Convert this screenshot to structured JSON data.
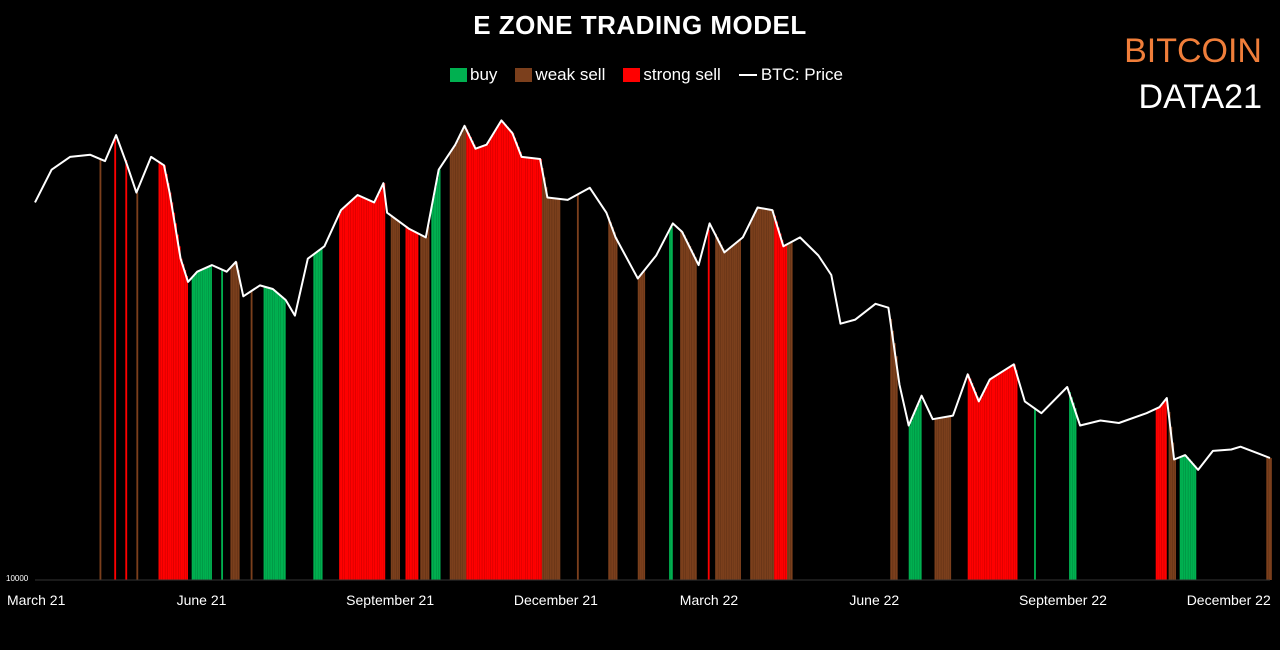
{
  "title": "E ZONE TRADING MODEL",
  "brand": {
    "line1": "BITCOIN",
    "line2": "DATA21",
    "line1_color": "#F07E3A",
    "line2_color": "#FFFFFF"
  },
  "legend": [
    {
      "label": "buy",
      "color": "#00B050",
      "kind": "box"
    },
    {
      "label": "weak sell",
      "color": "#7B3F1C",
      "kind": "box"
    },
    {
      "label": "strong sell",
      "color": "#FF0000",
      "kind": "box"
    },
    {
      "label": "BTC: Price",
      "color": "#FFFFFF",
      "kind": "line"
    }
  ],
  "chart_data": {
    "type": "bar",
    "x_axis": {
      "start": "2021-03-01",
      "end": "2022-12-31",
      "ticks": [
        {
          "label": "March 21",
          "date": "2021-03-01"
        },
        {
          "label": "June 21",
          "date": "2021-06-01"
        },
        {
          "label": "September 21",
          "date": "2021-09-01"
        },
        {
          "label": "December 21",
          "date": "2021-12-01"
        },
        {
          "label": "March 22",
          "date": "2022-03-01"
        },
        {
          "label": "June 22",
          "date": "2022-06-01"
        },
        {
          "label": "September 22",
          "date": "2022-09-01"
        },
        {
          "label": "December 22",
          "date": "2022-12-01"
        }
      ]
    },
    "y_axis": {
      "scale": "log",
      "min": 10000,
      "max": 75000,
      "tick_labels": [
        "10000"
      ]
    },
    "price_series": {
      "name": "BTC: Price",
      "color": "#FFFFFF",
      "points": [
        [
          "2021-03-01",
          48000
        ],
        [
          "2021-03-10",
          55000
        ],
        [
          "2021-03-20",
          58000
        ],
        [
          "2021-03-31",
          58500
        ],
        [
          "2021-04-08",
          57000
        ],
        [
          "2021-04-14",
          63500
        ],
        [
          "2021-04-20",
          56000
        ],
        [
          "2021-04-25",
          50000
        ],
        [
          "2021-05-03",
          58000
        ],
        [
          "2021-05-10",
          56000
        ],
        [
          "2021-05-13",
          50000
        ],
        [
          "2021-05-19",
          38000
        ],
        [
          "2021-05-23",
          34500
        ],
        [
          "2021-05-28",
          36000
        ],
        [
          "2021-06-05",
          37000
        ],
        [
          "2021-06-13",
          36000
        ],
        [
          "2021-06-18",
          37500
        ],
        [
          "2021-06-22",
          32500
        ],
        [
          "2021-07-01",
          34000
        ],
        [
          "2021-07-08",
          33500
        ],
        [
          "2021-07-15",
          32000
        ],
        [
          "2021-07-20",
          30000
        ],
        [
          "2021-07-27",
          38000
        ],
        [
          "2021-08-05",
          40000
        ],
        [
          "2021-08-14",
          46500
        ],
        [
          "2021-08-23",
          49500
        ],
        [
          "2021-09-01",
          48000
        ],
        [
          "2021-09-06",
          52000
        ],
        [
          "2021-09-08",
          46000
        ],
        [
          "2021-09-20",
          43000
        ],
        [
          "2021-09-29",
          41500
        ],
        [
          "2021-10-06",
          55000
        ],
        [
          "2021-10-15",
          61000
        ],
        [
          "2021-10-20",
          66000
        ],
        [
          "2021-10-26",
          60000
        ],
        [
          "2021-11-01",
          61000
        ],
        [
          "2021-11-09",
          67500
        ],
        [
          "2021-11-15",
          64000
        ],
        [
          "2021-11-20",
          58000
        ],
        [
          "2021-11-30",
          57500
        ],
        [
          "2021-12-04",
          49000
        ],
        [
          "2021-12-15",
          48500
        ],
        [
          "2021-12-27",
          51000
        ],
        [
          "2022-01-05",
          46000
        ],
        [
          "2022-01-10",
          41500
        ],
        [
          "2022-01-22",
          35000
        ],
        [
          "2022-02-01",
          38500
        ],
        [
          "2022-02-10",
          44000
        ],
        [
          "2022-02-15",
          42500
        ],
        [
          "2022-02-24",
          37000
        ],
        [
          "2022-03-02",
          44000
        ],
        [
          "2022-03-10",
          39000
        ],
        [
          "2022-03-20",
          41500
        ],
        [
          "2022-03-28",
          47000
        ],
        [
          "2022-04-05",
          46500
        ],
        [
          "2022-04-11",
          40000
        ],
        [
          "2022-04-20",
          41500
        ],
        [
          "2022-04-30",
          38500
        ],
        [
          "2022-05-07",
          35500
        ],
        [
          "2022-05-12",
          29000
        ],
        [
          "2022-05-20",
          29500
        ],
        [
          "2022-05-31",
          31500
        ],
        [
          "2022-06-07",
          31000
        ],
        [
          "2022-06-13",
          22500
        ],
        [
          "2022-06-18",
          19000
        ],
        [
          "2022-06-25",
          21500
        ],
        [
          "2022-07-01",
          19500
        ],
        [
          "2022-07-12",
          19800
        ],
        [
          "2022-07-20",
          23500
        ],
        [
          "2022-07-26",
          21000
        ],
        [
          "2022-08-01",
          23000
        ],
        [
          "2022-08-14",
          24500
        ],
        [
          "2022-08-20",
          21000
        ],
        [
          "2022-08-29",
          20000
        ],
        [
          "2022-09-12",
          22300
        ],
        [
          "2022-09-19",
          19000
        ],
        [
          "2022-09-30",
          19400
        ],
        [
          "2022-10-10",
          19200
        ],
        [
          "2022-10-25",
          20000
        ],
        [
          "2022-11-01",
          20500
        ],
        [
          "2022-11-05",
          21300
        ],
        [
          "2022-11-09",
          16500
        ],
        [
          "2022-11-15",
          16800
        ],
        [
          "2022-11-22",
          15800
        ],
        [
          "2022-11-30",
          17100
        ],
        [
          "2022-12-10",
          17200
        ],
        [
          "2022-12-15",
          17400
        ],
        [
          "2022-12-25",
          16900
        ],
        [
          "2022-12-31",
          16600
        ]
      ]
    },
    "signals": [
      {
        "type": "weak sell",
        "from": "2021-04-05",
        "to": "2021-04-05"
      },
      {
        "type": "strong sell",
        "from": "2021-04-13",
        "to": "2021-04-13"
      },
      {
        "type": "strong sell",
        "from": "2021-04-19",
        "to": "2021-04-19"
      },
      {
        "type": "weak sell",
        "from": "2021-04-25",
        "to": "2021-04-25"
      },
      {
        "type": "strong sell",
        "from": "2021-05-07",
        "to": "2021-05-22"
      },
      {
        "type": "buy",
        "from": "2021-05-25",
        "to": "2021-06-04"
      },
      {
        "type": "buy",
        "from": "2021-06-10",
        "to": "2021-06-10"
      },
      {
        "type": "weak sell",
        "from": "2021-06-15",
        "to": "2021-06-19"
      },
      {
        "type": "weak sell",
        "from": "2021-06-26",
        "to": "2021-06-26"
      },
      {
        "type": "buy",
        "from": "2021-07-03",
        "to": "2021-07-14"
      },
      {
        "type": "buy",
        "from": "2021-07-30",
        "to": "2021-08-03"
      },
      {
        "type": "strong sell",
        "from": "2021-08-13",
        "to": "2021-09-06"
      },
      {
        "type": "weak sell",
        "from": "2021-09-10",
        "to": "2021-09-14"
      },
      {
        "type": "strong sell",
        "from": "2021-09-18",
        "to": "2021-09-24"
      },
      {
        "type": "weak sell",
        "from": "2021-09-26",
        "to": "2021-09-30"
      },
      {
        "type": "buy",
        "from": "2021-10-02",
        "to": "2021-10-06"
      },
      {
        "type": "weak sell",
        "from": "2021-10-12",
        "to": "2021-10-20"
      },
      {
        "type": "strong sell",
        "from": "2021-10-21",
        "to": "2021-11-30"
      },
      {
        "type": "weak sell",
        "from": "2021-12-01",
        "to": "2021-12-10"
      },
      {
        "type": "weak sell",
        "from": "2021-12-20",
        "to": "2021-12-20"
      },
      {
        "type": "weak sell",
        "from": "2022-01-06",
        "to": "2022-01-10"
      },
      {
        "type": "weak sell",
        "from": "2022-01-22",
        "to": "2022-01-25"
      },
      {
        "type": "buy",
        "from": "2022-02-08",
        "to": "2022-02-09"
      },
      {
        "type": "weak sell",
        "from": "2022-02-14",
        "to": "2022-02-22"
      },
      {
        "type": "strong sell",
        "from": "2022-03-01",
        "to": "2022-03-01"
      },
      {
        "type": "weak sell",
        "from": "2022-03-05",
        "to": "2022-03-18"
      },
      {
        "type": "weak sell",
        "from": "2022-03-24",
        "to": "2022-04-05"
      },
      {
        "type": "strong sell",
        "from": "2022-04-06",
        "to": "2022-04-12"
      },
      {
        "type": "weak sell",
        "from": "2022-04-13",
        "to": "2022-04-15"
      },
      {
        "type": "weak sell",
        "from": "2022-06-08",
        "to": "2022-06-11"
      },
      {
        "type": "buy",
        "from": "2022-06-18",
        "to": "2022-06-24"
      },
      {
        "type": "weak sell",
        "from": "2022-07-02",
        "to": "2022-07-10"
      },
      {
        "type": "strong sell",
        "from": "2022-07-20",
        "to": "2022-08-15"
      },
      {
        "type": "buy",
        "from": "2022-08-25",
        "to": "2022-08-25"
      },
      {
        "type": "buy",
        "from": "2022-09-13",
        "to": "2022-09-16"
      },
      {
        "type": "strong sell",
        "from": "2022-10-30",
        "to": "2022-11-04"
      },
      {
        "type": "weak sell",
        "from": "2022-11-06",
        "to": "2022-11-09"
      },
      {
        "type": "buy",
        "from": "2022-11-12",
        "to": "2022-11-20"
      },
      {
        "type": "weak sell",
        "from": "2022-12-29",
        "to": "2022-12-31"
      }
    ]
  }
}
